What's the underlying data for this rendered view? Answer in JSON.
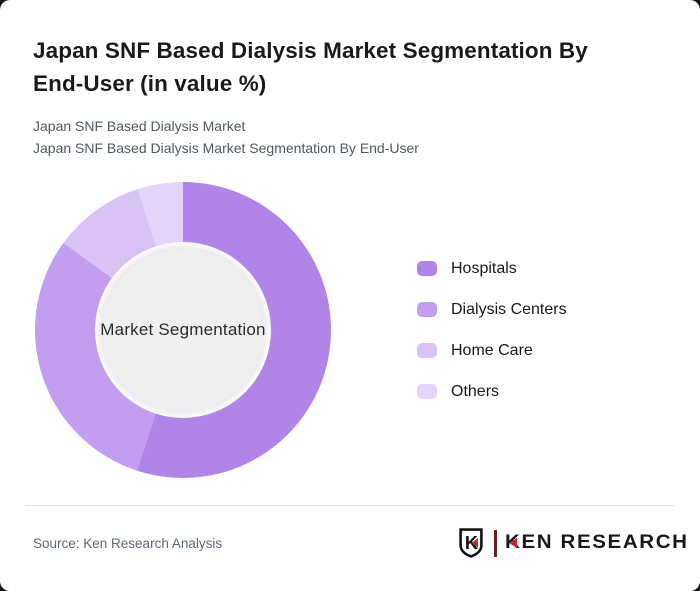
{
  "header": {
    "title": "Japan SNF Based Dialysis Market Segmentation By End-User (in value %)",
    "subtitle1": "Japan SNF Based Dialysis Market",
    "subtitle2": "Japan SNF Based Dialysis Market Segmentation By End-User"
  },
  "chart_data": {
    "type": "pie",
    "subtype": "donut",
    "title": "Japan SNF Based Dialysis Market Segmentation By End-User (in value %)",
    "categories": [
      "Hospitals",
      "Dialysis Centers",
      "Home Care",
      "Others"
    ],
    "values": [
      55,
      30,
      10,
      5
    ],
    "unit": "% of value",
    "colors": [
      "#b185e8",
      "#c29df0",
      "#d9c3f5",
      "#e4d4f9"
    ],
    "center_label": "Market Segmentation",
    "start_angle_deg": 0,
    "direction": "clockwise",
    "legend_position": "right",
    "inner_radius_ratio": 0.59
  },
  "footer": {
    "source": "Source: Ken Research Analysis",
    "logo": {
      "monogram": "K",
      "text": "KEN RESEARCH"
    }
  },
  "colors": {
    "slice_hospitals": "#b185e8",
    "slice_dialysis_centers": "#c29df0",
    "slice_home_care": "#d9c3f5",
    "slice_others": "#e4d4f9",
    "center_circle": "#efefef",
    "title_text": "#1a1a1a",
    "subtitle_text": "#515862",
    "source_text": "#5f6774",
    "divider": "#e3e3e3",
    "logo_red": "#c1272d",
    "page_bg": "#131418",
    "card_bg": "#ffffff"
  }
}
